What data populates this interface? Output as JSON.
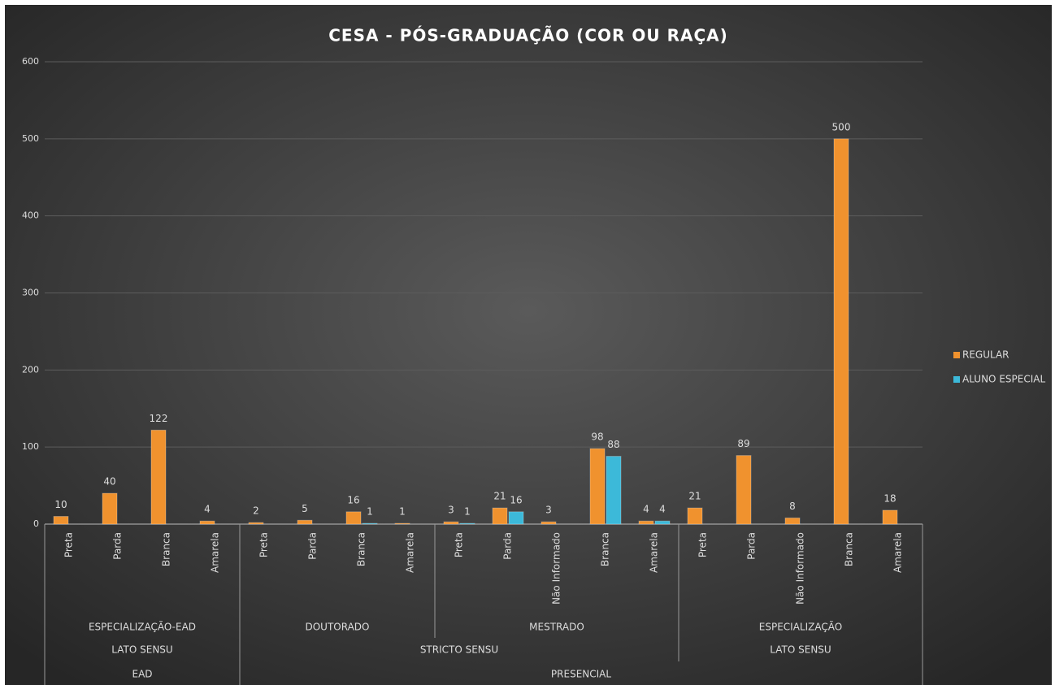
{
  "chart_data": {
    "type": "bar",
    "title": "CESA - PÓS-GRADUAÇÃO (COR OU RAÇA)",
    "category_tree": [
      {
        "name": "EAD",
        "groups": [
          {
            "name": "LATO SENSU",
            "groups": [
              {
                "name": "ESPECIALIZAÇÃO-EAD",
                "categories": [
                  "Preta",
                  "Parda",
                  "Branca",
                  "Amarela"
                ]
              }
            ]
          }
        ]
      },
      {
        "name": "PRESENCIAL",
        "groups": [
          {
            "name": "STRICTO SENSU",
            "groups": [
              {
                "name": "DOUTORADO",
                "categories": [
                  "Preta",
                  "Parda",
                  "Branca",
                  "Amarela"
                ]
              },
              {
                "name": "MESTRADO",
                "categories": [
                  "Preta",
                  "Parda",
                  "Não Informado",
                  "Branca",
                  "Amarela"
                ]
              }
            ]
          },
          {
            "name": "LATO SENSU",
            "groups": [
              {
                "name": "ESPECIALIZAÇÃO",
                "categories": [
                  "Preta",
                  "Parda",
                  "Não Informado",
                  "Branca",
                  "Amarela"
                ]
              }
            ]
          }
        ]
      }
    ],
    "series": [
      {
        "name": "REGULAR",
        "color": "#f0922e",
        "values": [
          10,
          40,
          122,
          4,
          2,
          5,
          16,
          1,
          3,
          21,
          3,
          98,
          4,
          21,
          89,
          8,
          500,
          18
        ]
      },
      {
        "name": "ALUNO ESPECIAL",
        "color": "#3cb9d9",
        "values": [
          null,
          null,
          null,
          null,
          null,
          null,
          1,
          null,
          1,
          16,
          null,
          88,
          4,
          null,
          null,
          null,
          null,
          null
        ]
      }
    ],
    "ylim": [
      0,
      600
    ],
    "yticks": [
      0,
      100,
      200,
      300,
      400,
      500,
      600
    ],
    "grid": true,
    "legend": "right"
  }
}
